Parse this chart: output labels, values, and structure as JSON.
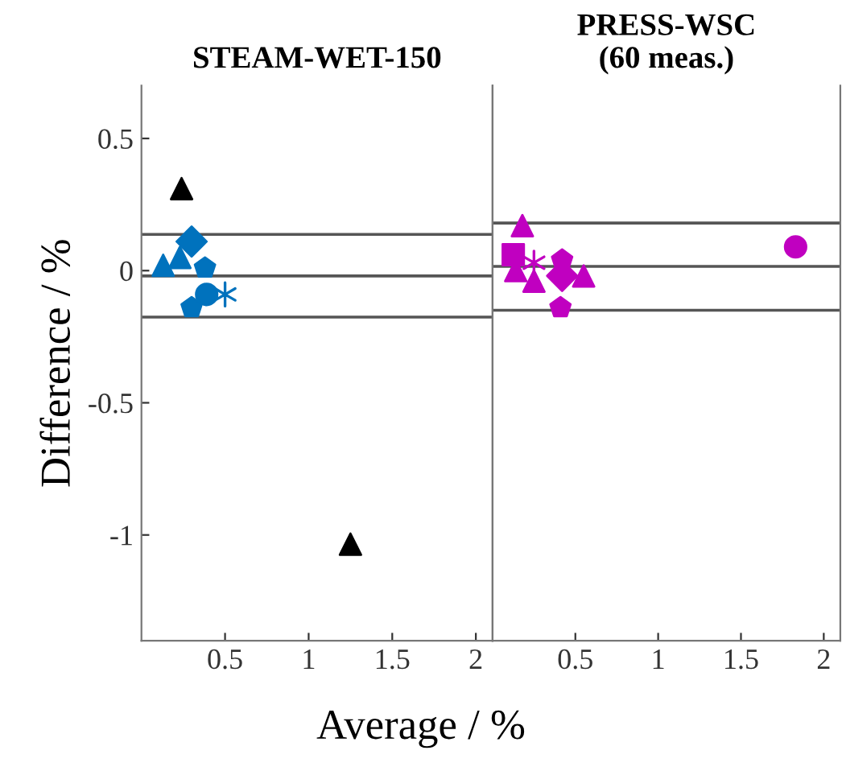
{
  "chart_data": [
    {
      "type": "scatter",
      "title": "STEAM-WET-150",
      "xlabel": "Average / %",
      "ylabel": "Difference / %",
      "xlim": [
        0,
        2.1
      ],
      "ylim": [
        -1.4,
        0.7
      ],
      "xticks": [
        0.5,
        1,
        1.5,
        2
      ],
      "yticks": [
        -1,
        -0.5,
        0,
        0.5
      ],
      "grid": false,
      "ref_lines": [
        {
          "axis": "y",
          "value": 0.137,
          "color": "#555555"
        },
        {
          "axis": "y",
          "value": -0.02,
          "color": "#555555"
        },
        {
          "axis": "y",
          "value": -0.176,
          "color": "#555555"
        }
      ],
      "series": [
        {
          "color": "#000000",
          "marker": "triangle",
          "x": [
            0.24
          ],
          "values": [
            0.31
          ]
        },
        {
          "color": "#000000",
          "marker": "triangle",
          "x": [
            1.25
          ],
          "values": [
            -1.035
          ]
        },
        {
          "color": "#0072bd",
          "marker": "triangle",
          "x": [
            0.13,
            0.23
          ],
          "values": [
            0.02,
            0.05
          ]
        },
        {
          "color": "#0072bd",
          "marker": "diamond",
          "x": [
            0.3
          ],
          "values": [
            0.11
          ]
        },
        {
          "color": "#0072bd",
          "marker": "star",
          "x": [
            0.38,
            0.3
          ],
          "values": [
            0.01,
            -0.14
          ]
        },
        {
          "color": "#0072bd",
          "marker": "circle",
          "x": [
            0.39
          ],
          "values": [
            -0.09
          ]
        },
        {
          "color": "#0072bd",
          "marker": "cross",
          "x": [
            0.5
          ],
          "values": [
            -0.09
          ]
        }
      ]
    },
    {
      "type": "scatter",
      "title": "PRESS-WSC\n(60 meas.)",
      "xlim": [
        0,
        2.1
      ],
      "ylim": [
        -1.4,
        0.7
      ],
      "xticks": [
        0.5,
        1,
        1.5,
        2
      ],
      "tick_labels": "x",
      "grid": false,
      "ref_lines": [
        {
          "axis": "y",
          "value": 0.18,
          "color": "#555555"
        },
        {
          "axis": "y",
          "value": 0.016,
          "color": "#555555"
        },
        {
          "axis": "y",
          "value": -0.15,
          "color": "#555555"
        }
      ],
      "series": [
        {
          "color": "#c000c0",
          "marker": "triangle",
          "x": [
            0.18,
            0.14,
            0.25,
            0.55
          ],
          "values": [
            0.17,
            0.0,
            -0.04,
            -0.02
          ]
        },
        {
          "color": "#c000c0",
          "marker": "square",
          "x": [
            0.125
          ],
          "values": [
            0.06
          ]
        },
        {
          "color": "#c000c0",
          "marker": "cross",
          "x": [
            0.25
          ],
          "values": [
            0.03
          ]
        },
        {
          "color": "#c000c0",
          "marker": "star",
          "x": [
            0.42,
            0.41
          ],
          "values": [
            0.04,
            -0.14
          ]
        },
        {
          "color": "#c000c0",
          "marker": "diamond",
          "x": [
            0.42
          ],
          "values": [
            -0.02
          ]
        },
        {
          "color": "#c000c0",
          "marker": "circle",
          "x": [
            1.83
          ],
          "values": [
            0.09
          ]
        }
      ]
    }
  ]
}
